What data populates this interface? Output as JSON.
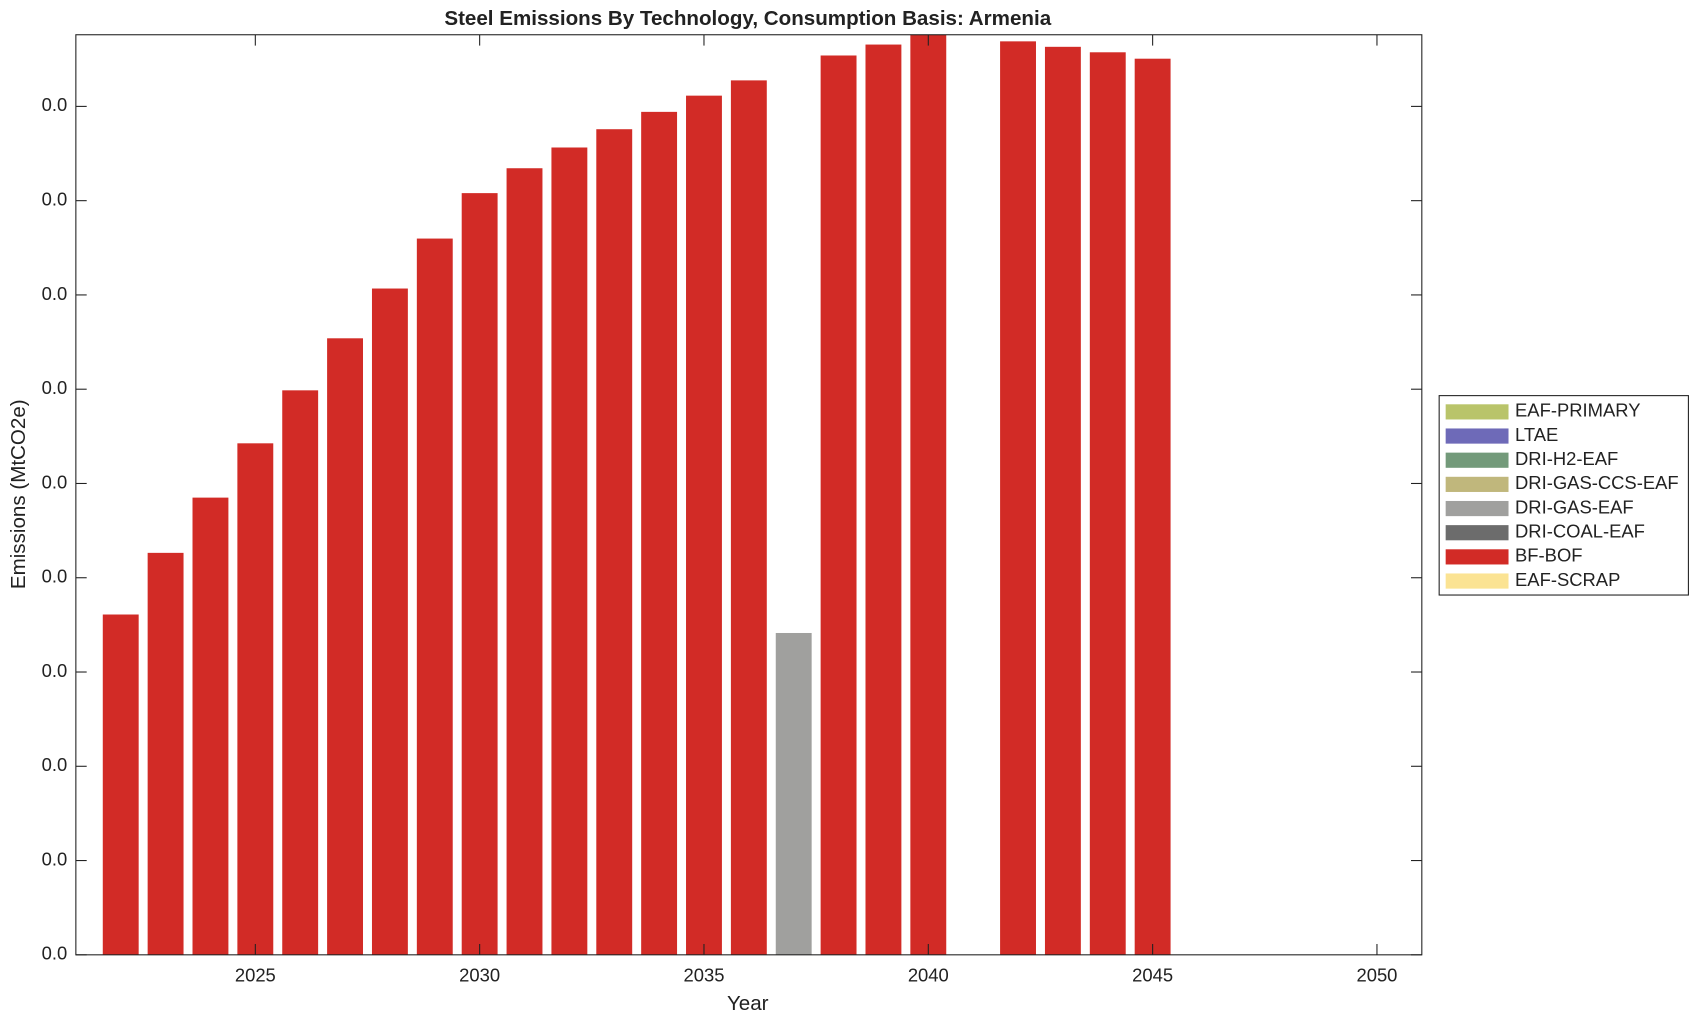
{
  "chart_data": {
    "type": "stacked_bar",
    "title": "Steel Emissions By Technology, Consumption Basis: Armenia",
    "x_label": "Year",
    "y_label": "Emissions (MtCO2e)",
    "x": [
      2022,
      2023,
      2024,
      2025,
      2026,
      2027,
      2028,
      2029,
      2030,
      2031,
      2032,
      2033,
      2034,
      2035,
      2036,
      2037,
      2038,
      2039,
      2040,
      2041,
      2042,
      2043,
      2044,
      2045
    ],
    "xlim": [
      2021,
      2051
    ],
    "xticks": [
      2025,
      2030,
      2035,
      2040,
      2045,
      2050
    ],
    "ylim": [
      0,
      0.0488
    ],
    "yticks": [
      {
        "value": 0,
        "label": "0.0"
      },
      {
        "value": 0.005,
        "label": "0.0"
      },
      {
        "value": 0.01,
        "label": "0.0"
      },
      {
        "value": 0.015,
        "label": "0.0"
      },
      {
        "value": 0.02,
        "label": "0.0"
      },
      {
        "value": 0.025,
        "label": "0.0"
      },
      {
        "value": 0.03,
        "label": "0.0"
      },
      {
        "value": 0.035,
        "label": "0.0"
      },
      {
        "value": 0.04,
        "label": "0.0"
      },
      {
        "value": 0.045,
        "label": "0.0"
      }
    ],
    "legend": "right",
    "series": [
      {
        "name": "EAF-PRIMARY",
        "color": "#b9c46a",
        "values": [
          0,
          0,
          0,
          0,
          0,
          0,
          0,
          0,
          0,
          0,
          0,
          0,
          0,
          0,
          0,
          0,
          0,
          0,
          0,
          null,
          0,
          0,
          0,
          0
        ]
      },
      {
        "name": "LTAE",
        "color": "#6e6ab8",
        "values": [
          0,
          0,
          0,
          0,
          0,
          0,
          0,
          0,
          0,
          0,
          0,
          0,
          0,
          0,
          0,
          0,
          0,
          0,
          0,
          null,
          0,
          0,
          0,
          0
        ]
      },
      {
        "name": "DRI-H2-EAF",
        "color": "#739a7a",
        "values": [
          0,
          0,
          0,
          0,
          0,
          0,
          0,
          0,
          0,
          0,
          0,
          0,
          0,
          0,
          0,
          0,
          0,
          0,
          0,
          null,
          0,
          0,
          0,
          0
        ]
      },
      {
        "name": "DRI-GAS-CCS-EAF",
        "color": "#c0b77c",
        "values": [
          0,
          0,
          0,
          0,
          0,
          0,
          0,
          0,
          0,
          0,
          0,
          0,
          0,
          0,
          0,
          0,
          0,
          0,
          0,
          null,
          0,
          0,
          0,
          0
        ]
      },
      {
        "name": "DRI-GAS-EAF",
        "color": "#a0a09e",
        "values": [
          0,
          0,
          0,
          0,
          0,
          0,
          0,
          0,
          0,
          0,
          0,
          0,
          0,
          0,
          0,
          0.01707,
          0,
          0,
          0,
          null,
          0,
          0,
          0,
          0
        ]
      },
      {
        "name": "DRI-COAL-EAF",
        "color": "#6c6c6c",
        "values": [
          0,
          0,
          0,
          0,
          0,
          0,
          0,
          0,
          0,
          0,
          0,
          0,
          0,
          0,
          0,
          0,
          0,
          0,
          0,
          null,
          0,
          0,
          0,
          0
        ]
      },
      {
        "name": "BF-BOF",
        "color": "#d22b26",
        "values": [
          0.01805,
          0.02132,
          0.02425,
          0.02713,
          0.02994,
          0.0327,
          0.03534,
          0.03799,
          0.0404,
          0.04172,
          0.04282,
          0.04379,
          0.04471,
          0.04557,
          0.04638,
          0,
          0.0477,
          0.04828,
          0.0495,
          null,
          0.04845,
          0.04816,
          0.04787,
          0.04753
        ]
      },
      {
        "name": "EAF-SCRAP",
        "color": "#fbe393",
        "values": [
          0,
          0,
          0,
          0,
          0,
          0,
          0,
          0,
          0,
          0,
          0,
          0,
          0,
          0,
          0,
          0,
          0,
          0,
          0,
          null,
          0,
          0,
          0,
          0
        ]
      }
    ]
  }
}
